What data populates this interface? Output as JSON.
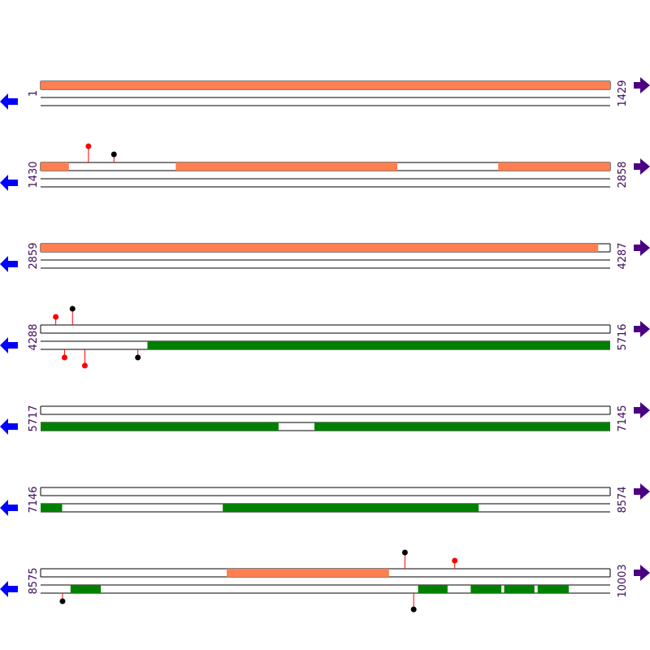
{
  "colors": {
    "forward_feature": "#ff7f50",
    "reverse_feature": "#008000",
    "red_marker": "#ff0000",
    "black_marker": "#000000",
    "forward_arrow": "#4b0082",
    "reverse_arrow": "#0000ff",
    "coord_text": "#3c0a5a"
  },
  "icons": {
    "left": "reverse-strand-arrow-icon",
    "right": "forward-strand-arrow-icon"
  },
  "chart_data": {
    "type": "sequence-map",
    "rows": [
      {
        "start": 1,
        "end": 1429,
        "start_label": "1",
        "end_label": "1429",
        "forward": [
          [
            1,
            1429
          ]
        ],
        "reverse": [],
        "markers": []
      },
      {
        "start": 1430,
        "end": 2858,
        "start_label": "1430",
        "end_label": "2858",
        "forward": [
          [
            1430,
            1500
          ],
          [
            1769,
            2324
          ],
          [
            2578,
            2858
          ]
        ],
        "reverse": [],
        "markers": [
          {
            "pos": 1550,
            "strand": "top",
            "color": "red",
            "level": 2
          },
          {
            "pos": 1614,
            "strand": "top",
            "color": "black",
            "level": 1
          }
        ]
      },
      {
        "start": 2859,
        "end": 4287,
        "start_label": "2859",
        "end_label": "4287",
        "forward": [
          [
            2859,
            4257
          ]
        ],
        "reverse": [],
        "markers": []
      },
      {
        "start": 4288,
        "end": 5716,
        "start_label": "4288",
        "end_label": "5716",
        "forward": [],
        "reverse": [
          [
            4556,
            5716
          ]
        ],
        "markers": [
          {
            "pos": 4326,
            "strand": "top",
            "color": "red",
            "level": 1
          },
          {
            "pos": 4368,
            "strand": "top",
            "color": "black",
            "level": 2
          },
          {
            "pos": 4348,
            "strand": "bottom",
            "color": "red",
            "level": 1
          },
          {
            "pos": 4399,
            "strand": "bottom",
            "color": "red",
            "level": 2
          },
          {
            "pos": 4532,
            "strand": "bottom",
            "color": "black",
            "level": 1
          }
        ]
      },
      {
        "start": 5717,
        "end": 7145,
        "start_label": "5717",
        "end_label": "7145",
        "forward": [],
        "reverse": [
          [
            5717,
            6313
          ],
          [
            6404,
            7145
          ]
        ],
        "markers": []
      },
      {
        "start": 7146,
        "end": 8574,
        "start_label": "7146",
        "end_label": "8574",
        "forward": [],
        "reverse": [
          [
            7146,
            7199
          ],
          [
            7603,
            8244
          ]
        ],
        "markers": []
      },
      {
        "start": 8575,
        "end": 10003,
        "start_label": "8575",
        "end_label": "10003",
        "forward": [
          [
            9042,
            9448
          ]
        ],
        "reverse": [
          [
            8650,
            8725
          ],
          [
            9522,
            9595
          ],
          [
            9654,
            9730
          ],
          [
            9738,
            9813
          ],
          [
            9822,
            9899
          ]
        ],
        "markers": [
          {
            "pos": 9489,
            "strand": "top",
            "color": "black",
            "level": 2
          },
          {
            "pos": 9614,
            "strand": "top",
            "color": "red",
            "level": 1
          },
          {
            "pos": 8630,
            "strand": "bottom",
            "color": "black",
            "level": 1
          },
          {
            "pos": 9511,
            "strand": "bottom",
            "color": "black",
            "level": 2
          }
        ]
      }
    ]
  }
}
